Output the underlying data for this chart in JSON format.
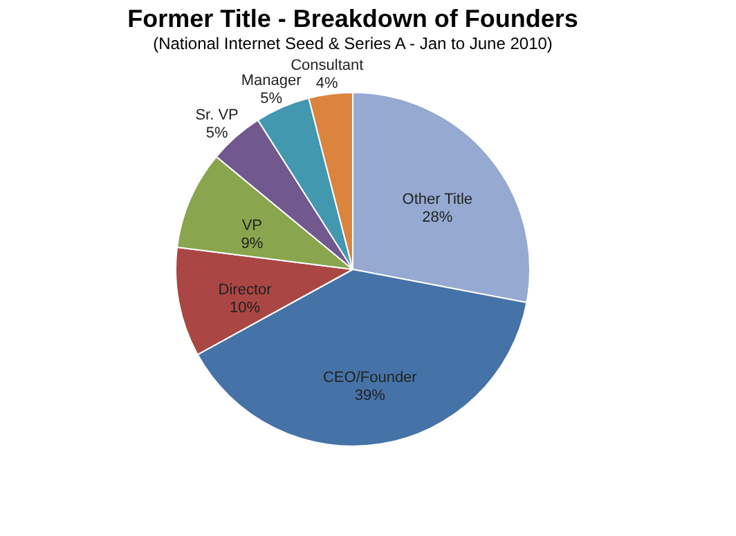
{
  "chart_data": {
    "type": "pie",
    "title": "Former Title - Breakdown of Founders",
    "subtitle": "(National Internet Seed & Series A - Jan to June 2010)",
    "categories": [
      "Other Title",
      "CEO/Founder",
      "Director",
      "VP",
      "Sr. VP",
      "Manager",
      "Consultant"
    ],
    "values": [
      28,
      39,
      10,
      9,
      5,
      5,
      4
    ],
    "value_labels": [
      "28%",
      "39%",
      "10%",
      "9%",
      "5%",
      "5%",
      "4%"
    ],
    "colors": [
      "#95a9d1",
      "#4572a7",
      "#aa4643",
      "#89a54e",
      "#71588f",
      "#4198af",
      "#db843d"
    ],
    "legend": false
  }
}
